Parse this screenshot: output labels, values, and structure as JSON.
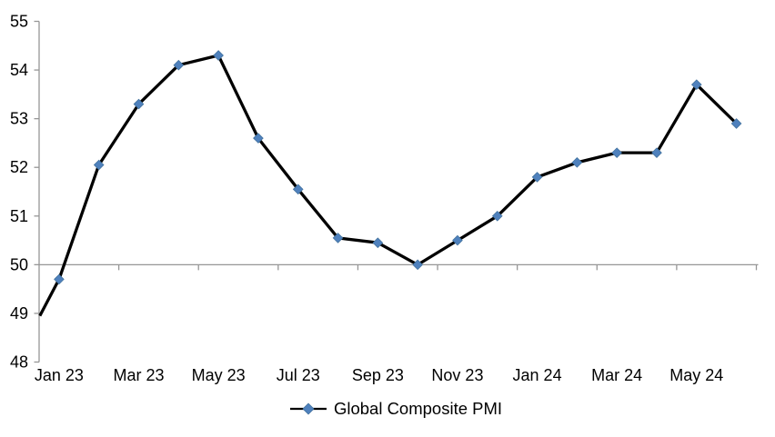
{
  "chart_data": {
    "type": "line",
    "title": "",
    "legend": "Global Composite PMI",
    "categories": [
      "Jan 23",
      "Feb 23",
      "Mar 23",
      "Apr 23",
      "May 23",
      "Jun 23",
      "Jul 23",
      "Aug 23",
      "Sep 23",
      "Oct 23",
      "Nov 23",
      "Dec 23",
      "Jan 24",
      "Feb 24",
      "Mar 24",
      "Apr 24",
      "May 24",
      "Jun 24"
    ],
    "values": [
      49.7,
      52.05,
      53.3,
      54.1,
      54.3,
      52.6,
      51.55,
      50.55,
      50.45,
      50.0,
      50.5,
      51.0,
      51.8,
      52.1,
      52.3,
      52.3,
      53.7,
      52.9
    ],
    "x_tick_labels": [
      "Jan 23",
      "Mar 23",
      "May 23",
      "Jul 23",
      "Sep 23",
      "Nov 23",
      "Jan 24",
      "Mar 24",
      "May 24"
    ],
    "y_ticks": [
      48,
      49,
      50,
      51,
      52,
      53,
      54,
      55
    ],
    "ylim": [
      48,
      55
    ],
    "x_axis_position_value": 50,
    "left_edge_value": 48.95,
    "grid": false,
    "legend_position": "bottom-center",
    "marker_shape": "diamond",
    "line_color": "#000000",
    "marker_color": "#4F81BD",
    "marker_edge_color": "#41719C",
    "axis_color": "#969696",
    "text_color": "#000000",
    "background_color": "#FFFFFF"
  }
}
